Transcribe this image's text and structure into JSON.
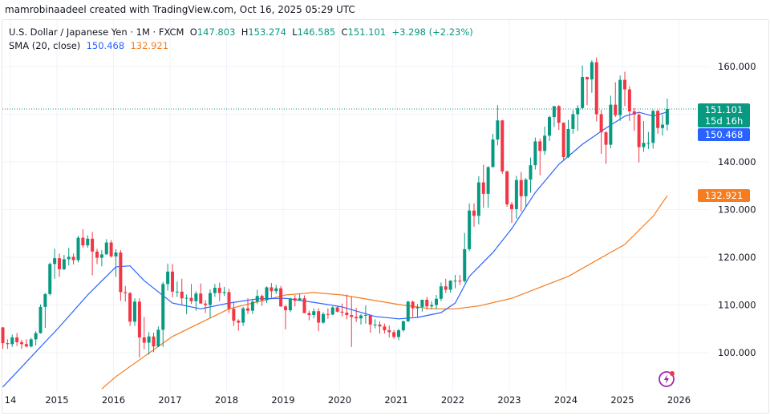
{
  "credit": "mamrobinaadeel created with TradingView.com, Oct 16, 2025 05:29 UTC",
  "legend": {
    "symbol": "U.S. Dollar / Japanese Yen · 1M · FXCM",
    "open_label": "O",
    "open": "147.803",
    "high_label": "H",
    "high": "153.274",
    "low_label": "L",
    "low": "146.585",
    "close_label": "C",
    "close": "151.101",
    "change": "+3.298 (+2.23%)",
    "indicator": "SMA (20, close)",
    "sma_fast": "150.468",
    "sma_slow": "132.921"
  },
  "price_tags": {
    "last_price": "151.101",
    "countdown": "15d 16h",
    "sma_fast": "150.468",
    "sma_slow": "132.921"
  },
  "colors": {
    "up": "#089981",
    "down": "#f23645",
    "sma_fast": "#2962ff",
    "sma_slow": "#f57c1f",
    "icon": "#9c27b0"
  },
  "icon": "lightning-bolt-icon",
  "chart_data": {
    "type": "candlestick",
    "interval": "1M",
    "start": "2014-01",
    "ylim": [
      92,
      166
    ],
    "y_ticks": [
      "160.000",
      "140.000",
      "130.000",
      "120.000",
      "110.000",
      "100.000"
    ],
    "y_tick_values": [
      160,
      140,
      130,
      120,
      110,
      100
    ],
    "x_ticks": [
      "14",
      "2015",
      "2016",
      "2017",
      "2018",
      "2019",
      "2020",
      "2021",
      "2022",
      "2023",
      "2024",
      "2025",
      "2026"
    ],
    "grid": true,
    "ohlc": [
      [
        105.3,
        105.4,
        100.8,
        102.0
      ],
      [
        102.0,
        102.8,
        100.8,
        101.8
      ],
      [
        101.8,
        103.8,
        101.2,
        103.2
      ],
      [
        103.2,
        104.1,
        101.4,
        102.2
      ],
      [
        102.2,
        102.7,
        100.8,
        101.8
      ],
      [
        101.8,
        102.8,
        101.1,
        101.3
      ],
      [
        101.3,
        103.1,
        101.1,
        102.8
      ],
      [
        102.8,
        104.5,
        101.5,
        104.1
      ],
      [
        104.1,
        110.1,
        104.0,
        109.6
      ],
      [
        109.6,
        112.5,
        105.2,
        112.3
      ],
      [
        112.3,
        118.9,
        112.0,
        118.6
      ],
      [
        118.6,
        121.8,
        115.5,
        119.8
      ],
      [
        119.8,
        120.8,
        115.9,
        117.5
      ],
      [
        117.5,
        120.5,
        117.3,
        119.6
      ],
      [
        119.6,
        122.0,
        118.3,
        120.1
      ],
      [
        120.1,
        120.8,
        118.5,
        119.4
      ],
      [
        119.4,
        124.5,
        118.9,
        124.1
      ],
      [
        124.1,
        125.9,
        122.0,
        122.5
      ],
      [
        122.5,
        124.6,
        122.0,
        123.9
      ],
      [
        123.9,
        125.3,
        116.2,
        121.2
      ],
      [
        121.2,
        121.8,
        118.6,
        119.9
      ],
      [
        119.9,
        121.5,
        118.1,
        120.6
      ],
      [
        120.6,
        123.8,
        120.6,
        123.1
      ],
      [
        123.1,
        123.6,
        119.9,
        120.2
      ],
      [
        120.2,
        121.7,
        115.9,
        121.0
      ],
      [
        121.0,
        121.5,
        110.9,
        112.7
      ],
      [
        112.7,
        114.0,
        110.7,
        112.5
      ],
      [
        112.5,
        112.7,
        105.6,
        106.5
      ],
      [
        106.5,
        111.4,
        105.6,
        110.7
      ],
      [
        110.7,
        111.4,
        99.0,
        103.2
      ],
      [
        103.2,
        107.5,
        100.7,
        102.1
      ],
      [
        102.1,
        104.3,
        99.6,
        103.4
      ],
      [
        103.4,
        104.2,
        100.1,
        101.3
      ],
      [
        101.3,
        105.5,
        101.2,
        104.8
      ],
      [
        104.8,
        114.8,
        101.2,
        114.4
      ],
      [
        114.4,
        118.7,
        113.0,
        117.0
      ],
      [
        117.0,
        118.6,
        111.6,
        112.8
      ],
      [
        112.8,
        114.9,
        111.7,
        112.8
      ],
      [
        112.8,
        115.5,
        110.1,
        111.4
      ],
      [
        111.4,
        112.2,
        108.1,
        111.5
      ],
      [
        111.5,
        114.4,
        110.2,
        110.8
      ],
      [
        110.8,
        112.9,
        108.8,
        112.4
      ],
      [
        112.4,
        114.5,
        110.3,
        110.3
      ],
      [
        110.3,
        111.0,
        108.3,
        110.0
      ],
      [
        110.0,
        113.3,
        107.3,
        112.5
      ],
      [
        112.5,
        114.4,
        111.7,
        113.6
      ],
      [
        113.6,
        114.7,
        110.8,
        112.5
      ],
      [
        112.5,
        113.8,
        111.9,
        112.7
      ],
      [
        112.7,
        113.4,
        108.3,
        109.2
      ],
      [
        109.2,
        110.5,
        105.6,
        106.7
      ],
      [
        106.7,
        107.0,
        104.6,
        106.3
      ],
      [
        106.3,
        109.6,
        105.6,
        109.3
      ],
      [
        109.3,
        111.4,
        108.1,
        108.8
      ],
      [
        108.8,
        111.0,
        108.1,
        110.7
      ],
      [
        110.7,
        113.2,
        110.2,
        111.9
      ],
      [
        111.9,
        112.2,
        109.8,
        111.0
      ],
      [
        111.0,
        113.9,
        110.4,
        113.7
      ],
      [
        113.7,
        114.6,
        111.4,
        112.9
      ],
      [
        112.9,
        114.2,
        112.3,
        113.5
      ],
      [
        113.5,
        114.0,
        109.6,
        109.7
      ],
      [
        109.7,
        110.0,
        104.9,
        108.9
      ],
      [
        108.9,
        111.5,
        108.5,
        111.4
      ],
      [
        111.4,
        112.1,
        109.7,
        110.9
      ],
      [
        110.9,
        112.4,
        110.8,
        111.4
      ],
      [
        111.4,
        112.0,
        108.3,
        108.3
      ],
      [
        108.3,
        108.8,
        106.8,
        107.9
      ],
      [
        107.9,
        109.3,
        107.2,
        108.7
      ],
      [
        108.7,
        109.3,
        104.5,
        106.3
      ],
      [
        106.3,
        108.5,
        106.1,
        108.1
      ],
      [
        108.1,
        109.3,
        107.1,
        108.0
      ],
      [
        108.0,
        109.7,
        107.9,
        109.5
      ],
      [
        109.5,
        109.7,
        108.4,
        108.6
      ],
      [
        108.6,
        110.3,
        107.6,
        108.4
      ],
      [
        108.4,
        112.2,
        107.0,
        107.9
      ],
      [
        107.9,
        111.7,
        101.2,
        107.5
      ],
      [
        107.5,
        109.4,
        106.4,
        107.2
      ],
      [
        107.2,
        108.1,
        105.9,
        107.8
      ],
      [
        107.8,
        109.9,
        106.1,
        107.9
      ],
      [
        107.9,
        107.9,
        104.2,
        105.9
      ],
      [
        105.9,
        107.0,
        105.1,
        105.9
      ],
      [
        105.9,
        106.6,
        104.0,
        105.5
      ],
      [
        105.5,
        106.1,
        104.0,
        104.7
      ],
      [
        104.7,
        105.7,
        103.2,
        104.3
      ],
      [
        104.3,
        104.8,
        102.9,
        103.3
      ],
      [
        103.3,
        105.0,
        102.6,
        104.7
      ],
      [
        104.7,
        106.7,
        104.4,
        106.6
      ],
      [
        106.6,
        110.9,
        106.4,
        110.7
      ],
      [
        110.7,
        110.9,
        107.5,
        109.3
      ],
      [
        109.3,
        110.2,
        107.5,
        109.6
      ],
      [
        109.6,
        111.1,
        108.6,
        111.1
      ],
      [
        111.1,
        111.7,
        109.1,
        109.7
      ],
      [
        109.7,
        110.8,
        109.1,
        110.0
      ],
      [
        110.0,
        112.1,
        109.1,
        111.3
      ],
      [
        111.3,
        114.7,
        110.8,
        113.9
      ],
      [
        113.9,
        115.5,
        112.5,
        113.2
      ],
      [
        113.2,
        115.2,
        112.6,
        115.1
      ],
      [
        115.1,
        116.3,
        113.5,
        115.1
      ],
      [
        115.1,
        116.3,
        114.2,
        115.0
      ],
      [
        115.0,
        125.1,
        114.7,
        121.7
      ],
      [
        121.7,
        131.3,
        121.3,
        129.8
      ],
      [
        129.8,
        131.3,
        126.4,
        128.7
      ],
      [
        128.7,
        137.0,
        126.9,
        135.7
      ],
      [
        135.7,
        139.4,
        130.4,
        133.3
      ],
      [
        133.3,
        139.1,
        130.4,
        138.9
      ],
      [
        138.9,
        145.9,
        138.9,
        144.7
      ],
      [
        144.7,
        151.9,
        143.5,
        148.7
      ],
      [
        148.7,
        148.8,
        137.5,
        138.0
      ],
      [
        138.0,
        138.2,
        130.6,
        131.1
      ],
      [
        131.1,
        131.6,
        127.2,
        130.1
      ],
      [
        130.1,
        137.1,
        128.1,
        136.2
      ],
      [
        136.2,
        137.9,
        129.6,
        132.8
      ],
      [
        132.8,
        136.6,
        130.6,
        136.3
      ],
      [
        136.3,
        140.9,
        133.5,
        139.3
      ],
      [
        139.3,
        145.1,
        138.4,
        144.3
      ],
      [
        144.3,
        144.9,
        137.2,
        142.3
      ],
      [
        142.3,
        147.4,
        141.5,
        145.5
      ],
      [
        145.5,
        149.7,
        144.4,
        149.4
      ],
      [
        149.4,
        151.7,
        147.3,
        151.7
      ],
      [
        151.7,
        151.9,
        146.7,
        148.2
      ],
      [
        148.2,
        148.3,
        140.3,
        141.0
      ],
      [
        141.0,
        148.8,
        140.8,
        146.9
      ],
      [
        146.9,
        150.9,
        145.9,
        150.0
      ],
      [
        150.0,
        151.9,
        146.5,
        151.3
      ],
      [
        151.3,
        160.2,
        151.0,
        157.8
      ],
      [
        157.8,
        157.9,
        151.9,
        157.3
      ],
      [
        157.3,
        161.3,
        154.5,
        160.9
      ],
      [
        160.9,
        161.9,
        148.5,
        150.0
      ],
      [
        150.0,
        150.9,
        141.7,
        146.2
      ],
      [
        146.2,
        146.5,
        139.6,
        143.6
      ],
      [
        143.6,
        153.9,
        142.9,
        152.0
      ],
      [
        152.0,
        156.7,
        149.4,
        149.8
      ],
      [
        149.8,
        158.1,
        148.6,
        157.2
      ],
      [
        157.2,
        158.9,
        151.7,
        155.2
      ],
      [
        155.2,
        155.9,
        148.6,
        150.6
      ],
      [
        150.6,
        151.3,
        146.5,
        149.9
      ],
      [
        149.9,
        150.5,
        139.9,
        143.1
      ],
      [
        143.1,
        148.6,
        142.1,
        144.0
      ],
      [
        144.0,
        146.3,
        142.7,
        144.0
      ],
      [
        144.0,
        150.9,
        142.8,
        150.7
      ],
      [
        150.7,
        150.9,
        145.9,
        147.1
      ],
      [
        147.1,
        149.9,
        145.5,
        147.8
      ],
      [
        147.803,
        153.274,
        146.585,
        151.101
      ]
    ],
    "sma_20": [
      [
        "2014-01",
        92.8
      ],
      [
        "2015-01",
        105.4
      ],
      [
        "2015-07",
        112.1
      ],
      [
        "2016-01",
        118.0
      ],
      [
        "2016-04",
        118.2
      ],
      [
        "2016-07",
        115.1
      ],
      [
        "2017-01",
        110.4
      ],
      [
        "2017-07",
        109.2
      ],
      [
        "2018-01",
        110.4
      ],
      [
        "2018-07",
        111.3
      ],
      [
        "2019-01",
        111.4
      ],
      [
        "2019-08",
        110.4
      ],
      [
        "2020-01",
        109.6
      ],
      [
        "2020-08",
        107.6
      ],
      [
        "2021-01",
        107.1
      ],
      [
        "2021-05",
        107.4
      ],
      [
        "2021-10",
        108.4
      ],
      [
        "2022-01",
        110.4
      ],
      [
        "2022-04",
        116.0
      ],
      [
        "2022-09",
        121.0
      ],
      [
        "2023-01",
        126.0
      ],
      [
        "2023-06",
        133.6
      ],
      [
        "2023-11",
        139.5
      ],
      [
        "2024-04",
        143.7
      ],
      [
        "2024-09",
        147.1
      ],
      [
        "2025-01",
        149.6
      ],
      [
        "2025-04",
        150.4
      ],
      [
        "2025-07",
        149.6
      ],
      [
        "2025-10",
        150.468
      ]
    ],
    "sma_slow": [
      [
        "2015-10",
        92.4
      ],
      [
        "2016-01",
        95.0
      ],
      [
        "2017-01",
        103.4
      ],
      [
        "2018-01",
        109.2
      ],
      [
        "2019-01",
        112.1
      ],
      [
        "2019-07",
        112.6
      ],
      [
        "2020-01",
        112.1
      ],
      [
        "2021-01",
        110.1
      ],
      [
        "2021-08",
        109.2
      ],
      [
        "2022-01",
        109.2
      ],
      [
        "2022-06",
        109.8
      ],
      [
        "2023-01",
        111.4
      ],
      [
        "2024-01",
        116.0
      ],
      [
        "2025-01",
        122.7
      ],
      [
        "2025-07",
        128.6
      ],
      [
        "2025-10",
        132.921
      ]
    ]
  }
}
